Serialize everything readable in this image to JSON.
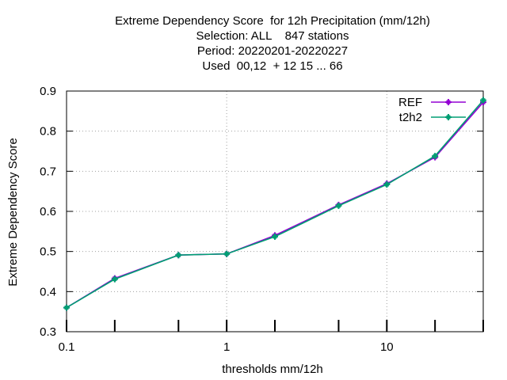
{
  "title_lines": [
    "Extreme Dependency Score  for 12h Precipitation (mm/12h)",
    "Selection: ALL    847 stations",
    "Period: 20220201-20220227",
    "Used  00,12  + 12 15 ... 66"
  ],
  "chart_data": {
    "type": "line",
    "title": "Extreme Dependency Score  for 12h Precipitation (mm/12h)",
    "xlabel": "thresholds mm/12h",
    "ylabel": "Extreme Dependency Score",
    "xscale": "log",
    "xlim": [
      0.1,
      40
    ],
    "ylim": [
      0.3,
      0.9
    ],
    "x_ticks": [
      0.1,
      1,
      10
    ],
    "x_tick_labels": [
      "0.1",
      "1",
      "10"
    ],
    "y_ticks": [
      0.3,
      0.4,
      0.5,
      0.6,
      0.7,
      0.8,
      0.9
    ],
    "y_tick_labels": [
      "0.3",
      "0.4",
      "0.5",
      "0.6",
      "0.7",
      "0.8",
      "0.9"
    ],
    "grid": true,
    "legend_position": "top-right",
    "x": [
      0.1,
      0.2,
      0.5,
      1,
      2,
      5,
      10,
      20,
      40
    ],
    "series": [
      {
        "name": "REF",
        "color": "#9400d3",
        "values": [
          0.36,
          0.433,
          0.491,
          0.494,
          0.54,
          0.616,
          0.669,
          0.735,
          0.872
        ]
      },
      {
        "name": "t2h2",
        "color": "#009e73",
        "values": [
          0.36,
          0.431,
          0.491,
          0.494,
          0.537,
          0.614,
          0.667,
          0.738,
          0.877
        ]
      }
    ]
  }
}
